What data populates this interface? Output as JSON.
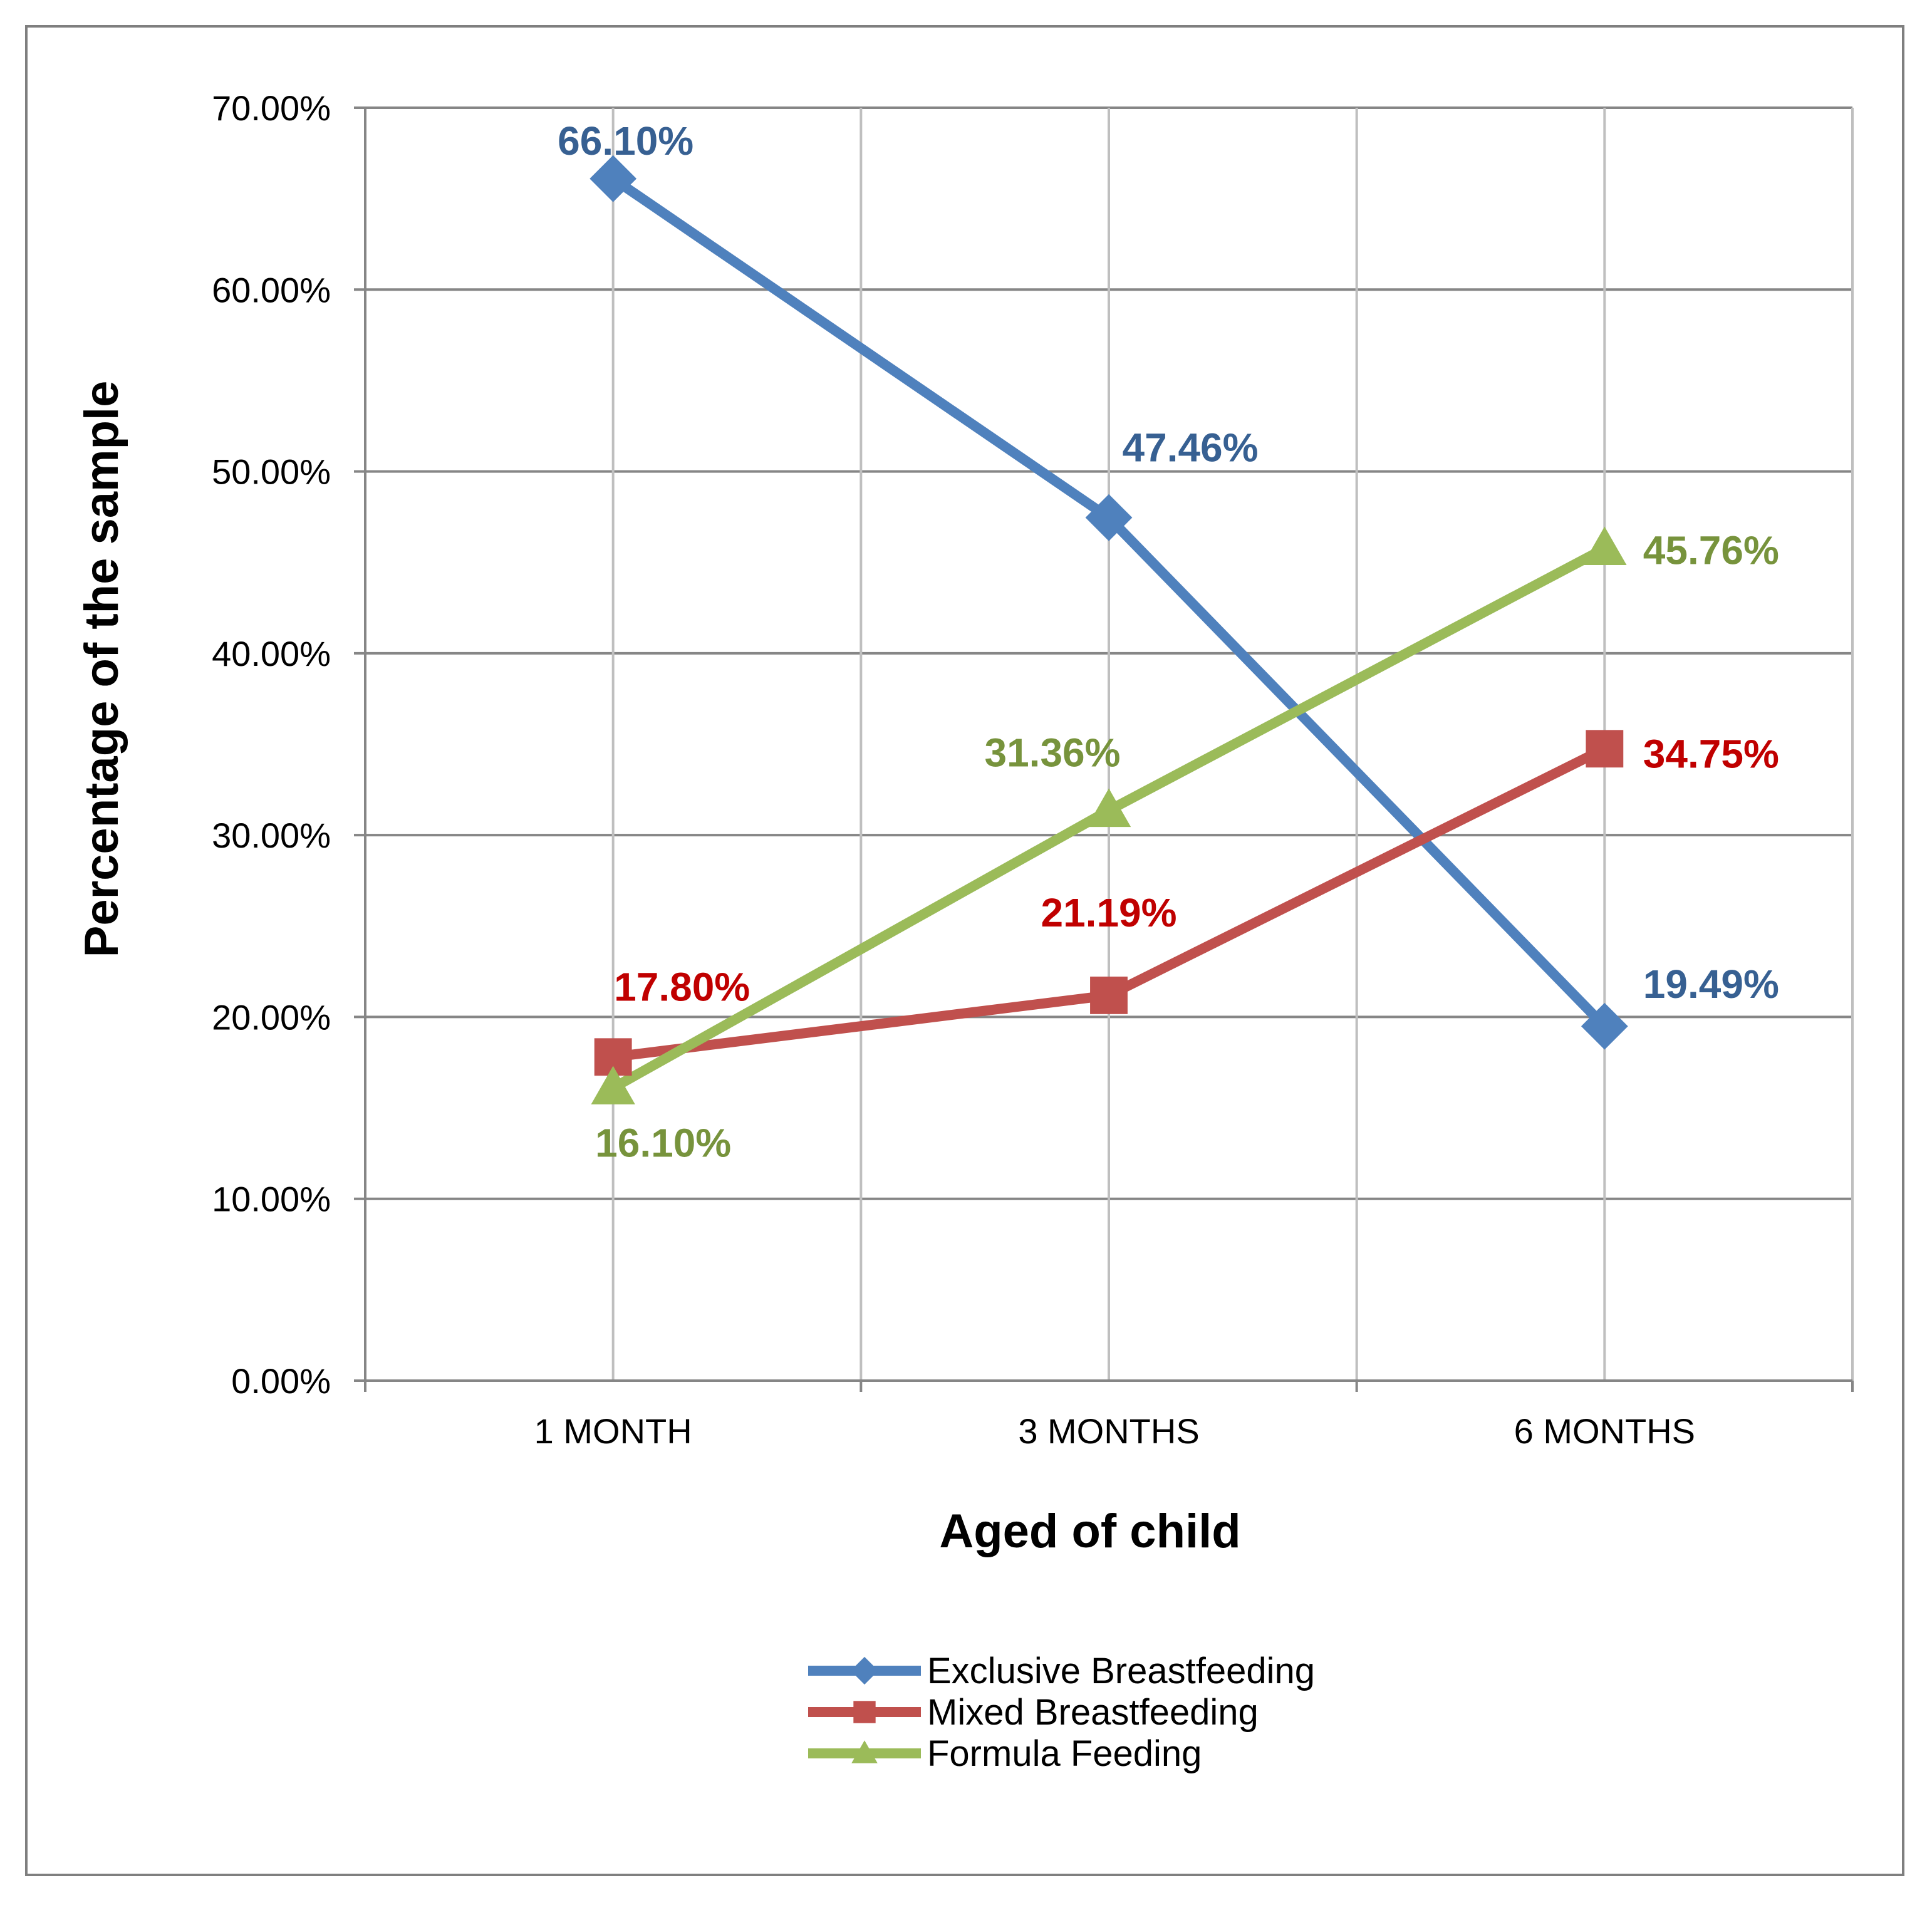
{
  "chart_data": {
    "type": "line",
    "categories": [
      "1 MONTH",
      "3 MONTHS",
      "6 MONTHS"
    ],
    "xlabel": "Aged of child",
    "ylabel": "Percentage of the sample",
    "ylim": [
      0,
      70
    ],
    "yticks": [
      "0.00%",
      "10.00%",
      "20.00%",
      "30.00%",
      "40.00%",
      "50.00%",
      "60.00%",
      "70.00%"
    ],
    "grid": true,
    "legend_position": "bottom",
    "series": [
      {
        "name": "Exclusive Breastfeeding",
        "values": [
          66.1,
          47.46,
          19.49
        ],
        "labels": [
          "66.10%",
          "47.46%",
          "19.49%"
        ],
        "color": "#4f81bd",
        "label_color": "#376092",
        "marker": "diamond"
      },
      {
        "name": "Mixed Breastfeeding",
        "values": [
          17.8,
          21.19,
          34.75
        ],
        "labels": [
          "17.80%",
          "21.19%",
          "34.75%"
        ],
        "color": "#c0504d",
        "label_color": "#c00000",
        "marker": "square"
      },
      {
        "name": "Formula Feeding",
        "values": [
          16.1,
          31.36,
          45.76
        ],
        "labels": [
          "16.10%",
          "31.36%",
          "45.76%"
        ],
        "color": "#9bbb59",
        "label_color": "#77933c",
        "marker": "triangle"
      }
    ]
  }
}
